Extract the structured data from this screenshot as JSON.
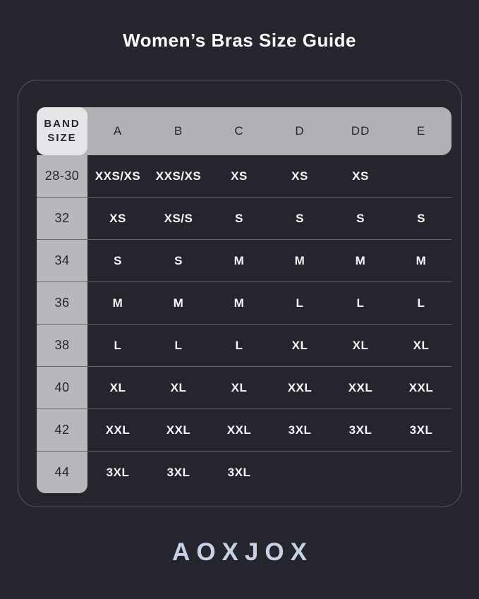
{
  "page": {
    "title": "Women’s Bras Size Guide",
    "brand": "AOXJOX"
  },
  "colors": {
    "background": "#25252e",
    "card_border": "#565661",
    "header_bar": "#b1b1b5",
    "band_header_cell": "#e5e5e7",
    "band_column": "#b8b8bc",
    "dark_text": "#26262e",
    "light_text": "#f7f7f9",
    "brand_logo": "#c7d1e3"
  },
  "table": {
    "band_header": "BAND SIZE",
    "cup_columns": [
      "A",
      "B",
      "C",
      "D",
      "DD",
      "E"
    ],
    "rows": [
      {
        "band": "28-30",
        "sizes": [
          "XXS/XS",
          "XXS/XS",
          "XS",
          "XS",
          "XS",
          ""
        ]
      },
      {
        "band": "32",
        "sizes": [
          "XS",
          "XS/S",
          "S",
          "S",
          "S",
          "S"
        ]
      },
      {
        "band": "34",
        "sizes": [
          "S",
          "S",
          "M",
          "M",
          "M",
          "M"
        ]
      },
      {
        "band": "36",
        "sizes": [
          "M",
          "M",
          "M",
          "L",
          "L",
          "L"
        ]
      },
      {
        "band": "38",
        "sizes": [
          "L",
          "L",
          "L",
          "XL",
          "XL",
          "XL"
        ]
      },
      {
        "band": "40",
        "sizes": [
          "XL",
          "XL",
          "XL",
          "XXL",
          "XXL",
          "XXL"
        ]
      },
      {
        "band": "42",
        "sizes": [
          "XXL",
          "XXL",
          "XXL",
          "3XL",
          "3XL",
          "3XL"
        ]
      },
      {
        "band": "44",
        "sizes": [
          "3XL",
          "3XL",
          "3XL",
          "",
          "",
          ""
        ]
      }
    ]
  }
}
